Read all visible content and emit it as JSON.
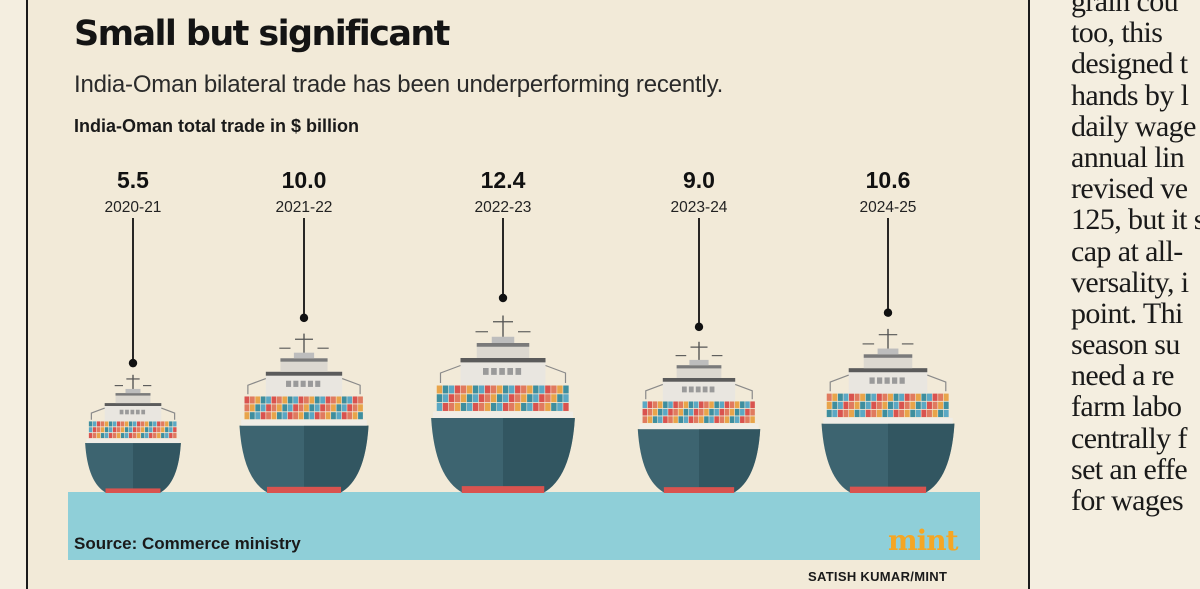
{
  "infographic": {
    "title": "Small but significant",
    "subtitle": "India-Oman bilateral trade has been underperforming recently.",
    "source": "Source: Commerce ministry",
    "logo": "mint",
    "credit": "SATISH KUMAR/MINT"
  },
  "chart_data": {
    "type": "bar",
    "title": "Small but significant",
    "subtitle": "India-Oman bilateral trade has been underperforming recently.",
    "ylabel": "India-Oman total trade in $ billion",
    "categories": [
      "2020-21",
      "2021-22",
      "2022-23",
      "2023-24",
      "2024-25"
    ],
    "values": [
      5.5,
      10.0,
      12.4,
      9.0,
      10.6
    ],
    "value_labels": [
      "5.5",
      "10.0",
      "12.4",
      "9.0",
      "10.6"
    ],
    "mark": "ship",
    "colors": {
      "hull": "#3d6470",
      "hull_dark": "#2a4b56",
      "waterline": "#d9534f",
      "water": "#8fcfd8",
      "superstructure": "#e9e6e0",
      "containers": [
        "#d9534f",
        "#e8a44a",
        "#5ba8c4",
        "#e07a5f",
        "#3e8e9e"
      ]
    }
  },
  "article_column": {
    "lines": [
      "grain cou",
      "too, this",
      "designed t",
      "hands by l",
      "daily wage",
      "annual lin",
      "revised ve",
      "125, but it s",
      "cap at all-",
      "versality, i",
      "point. Thi",
      "season su",
      "need a re",
      "farm labo",
      "centrally f",
      "set an effe",
      "for wages"
    ]
  }
}
